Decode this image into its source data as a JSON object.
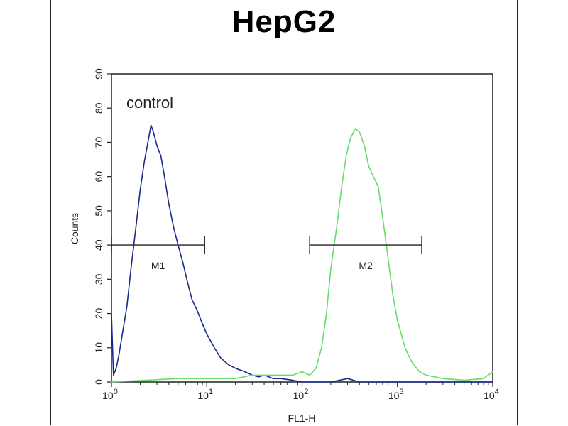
{
  "chart_data": {
    "type": "line",
    "title": "HepG2",
    "xlabel": "FL1-H",
    "ylabel": "Counts",
    "x_scale": "log",
    "xlim": [
      1,
      10000
    ],
    "ylim": [
      0,
      90
    ],
    "x_ticks": [
      {
        "base": "10",
        "exp": "0",
        "value": 1
      },
      {
        "base": "10",
        "exp": "1",
        "value": 10
      },
      {
        "base": "10",
        "exp": "2",
        "value": 100
      },
      {
        "base": "10",
        "exp": "3",
        "value": 1000
      },
      {
        "base": "10",
        "exp": "4",
        "value": 10000
      }
    ],
    "y_ticks": [
      "0",
      "10",
      "20",
      "30",
      "40",
      "50",
      "60",
      "70",
      "80",
      "90"
    ],
    "annotation": "control",
    "grid": false,
    "series": [
      {
        "color": "#1a2a8c",
        "points": [
          [
            1.0,
            20
          ],
          [
            1.05,
            2
          ],
          [
            1.12,
            4
          ],
          [
            1.2,
            8
          ],
          [
            1.3,
            14
          ],
          [
            1.45,
            22
          ],
          [
            1.6,
            33
          ],
          [
            1.8,
            45
          ],
          [
            2.0,
            56
          ],
          [
            2.2,
            64
          ],
          [
            2.45,
            71
          ],
          [
            2.6,
            75
          ],
          [
            2.75,
            73
          ],
          [
            3.0,
            69
          ],
          [
            3.3,
            66
          ],
          [
            3.6,
            60
          ],
          [
            4.0,
            52
          ],
          [
            4.5,
            45
          ],
          [
            5.0,
            40
          ],
          [
            5.6,
            35
          ],
          [
            6.3,
            29
          ],
          [
            7.0,
            24
          ],
          [
            7.9,
            21
          ],
          [
            9.0,
            17
          ],
          [
            10,
            14
          ],
          [
            12,
            10
          ],
          [
            14,
            7
          ],
          [
            17,
            5
          ],
          [
            20,
            4
          ],
          [
            25,
            3
          ],
          [
            30,
            2
          ],
          [
            35,
            1.5
          ],
          [
            40,
            2
          ],
          [
            50,
            1
          ],
          [
            60,
            1
          ],
          [
            80,
            0.5
          ],
          [
            100,
            0
          ],
          [
            200,
            0
          ],
          [
            300,
            1
          ],
          [
            400,
            0
          ],
          [
            1000,
            0
          ],
          [
            10000,
            0
          ]
        ]
      },
      {
        "color": "#66dd66",
        "points": [
          [
            1.0,
            0
          ],
          [
            5,
            1
          ],
          [
            10,
            1
          ],
          [
            20,
            1
          ],
          [
            30,
            2
          ],
          [
            50,
            2
          ],
          [
            80,
            2
          ],
          [
            100,
            3
          ],
          [
            120,
            2
          ],
          [
            140,
            4
          ],
          [
            160,
            10
          ],
          [
            180,
            20
          ],
          [
            200,
            33
          ],
          [
            230,
            45
          ],
          [
            260,
            57
          ],
          [
            290,
            66
          ],
          [
            320,
            71
          ],
          [
            360,
            74
          ],
          [
            400,
            73
          ],
          [
            450,
            69
          ],
          [
            500,
            63
          ],
          [
            560,
            60
          ],
          [
            630,
            57
          ],
          [
            700,
            48
          ],
          [
            800,
            36
          ],
          [
            900,
            25
          ],
          [
            1000,
            18
          ],
          [
            1200,
            10
          ],
          [
            1400,
            6
          ],
          [
            1700,
            3
          ],
          [
            2000,
            2
          ],
          [
            3000,
            1
          ],
          [
            5000,
            0.5
          ],
          [
            8000,
            1
          ],
          [
            10000,
            3
          ]
        ]
      }
    ],
    "markers": [
      {
        "label": "M1",
        "x_start": 1.0,
        "x_end": 9.5,
        "y": 40
      },
      {
        "label": "M2",
        "x_start": 120,
        "x_end": 1800,
        "y": 40
      }
    ]
  }
}
